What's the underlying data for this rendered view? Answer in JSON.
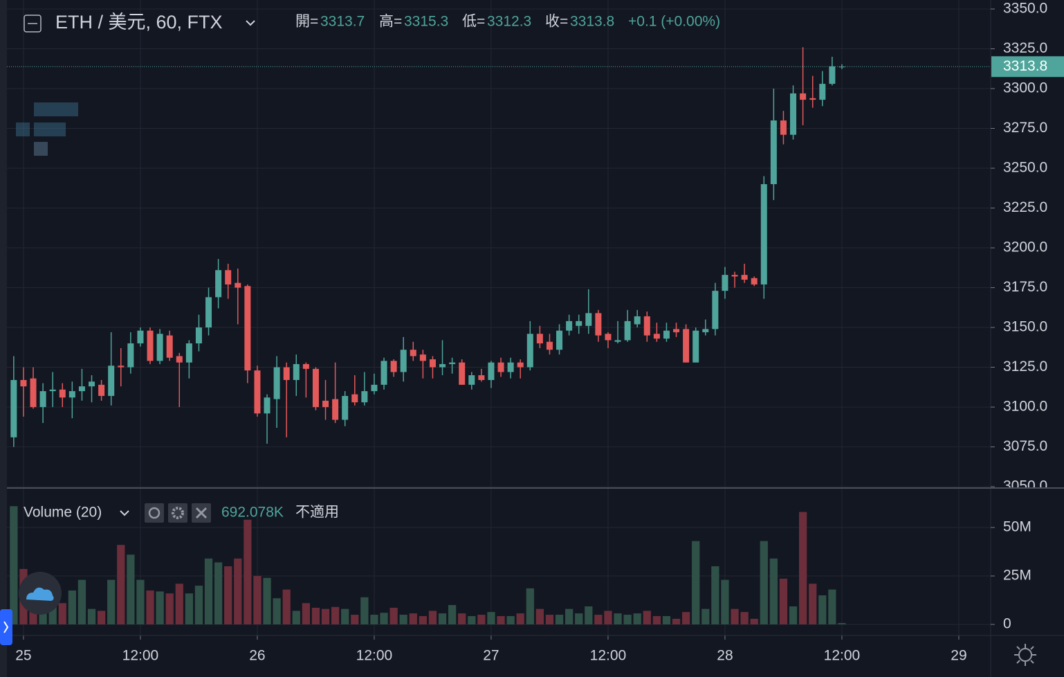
{
  "chart_data": [
    {
      "type": "candlestick",
      "title": "ETH / 美元, 60, FTX",
      "ohlc_labels": [
        "開=",
        "高=",
        "低=",
        "收="
      ],
      "change": "+0.1 (+0.00%)",
      "open": [
        3081,
        3117,
        3118,
        3100,
        3110,
        3111,
        3106,
        3110,
        3113,
        3114,
        3107,
        3126,
        3125,
        3140,
        3148,
        3129,
        3145,
        3132,
        3128,
        3140,
        3150,
        3169,
        3186,
        3178,
        3176,
        3123,
        3096,
        3105,
        3125,
        3117,
        3127,
        3124,
        3104,
        3105,
        3092,
        3108,
        3103,
        3110,
        3114,
        3129,
        3122,
        3136,
        3133,
        3130,
        3125,
        3127,
        3128,
        3114,
        3120,
        3117,
        3128,
        3122,
        3128,
        3125,
        3146,
        3141,
        3136,
        3148,
        3151,
        3151,
        3159,
        3146,
        3141,
        3142,
        3152,
        3157,
        3146,
        3143,
        3149,
        3149,
        3128,
        3147,
        3149,
        3173,
        3183,
        3183,
        3181,
        3177,
        3240,
        3280,
        3271,
        3297,
        3294,
        3293,
        3303,
        3313.7
      ],
      "high": [
        3132,
        3125,
        3125,
        3115,
        3122,
        3115,
        3116,
        3124,
        3120,
        3117,
        3147,
        3137,
        3147,
        3150,
        3150,
        3149,
        3148,
        3134,
        3142,
        3158,
        3175,
        3193,
        3190,
        3187,
        3177,
        3126,
        3108,
        3132,
        3128,
        3133,
        3128,
        3125,
        3117,
        3128,
        3110,
        3120,
        3122,
        3121,
        3131,
        3130,
        3144,
        3141,
        3136,
        3132,
        3142,
        3131,
        3130,
        3122,
        3124,
        3129,
        3131,
        3131,
        3130,
        3154,
        3151,
        3146,
        3152,
        3158,
        3158,
        3174,
        3161,
        3147,
        3154,
        3161,
        3161,
        3160,
        3153,
        3153,
        3153,
        3152,
        3150,
        3155,
        3178,
        3188,
        3185,
        3190,
        3182,
        3245,
        3300,
        3286,
        3302,
        3326,
        3308,
        3311,
        3320,
        3315.3
      ],
      "low": [
        3075,
        3094,
        3099,
        3090,
        3100,
        3100,
        3093,
        3104,
        3103,
        3104,
        3101,
        3113,
        3121,
        3138,
        3127,
        3127,
        3129,
        3100,
        3118,
        3135,
        3145,
        3162,
        3168,
        3152,
        3115,
        3094,
        3077,
        3087,
        3081,
        3107,
        3106,
        3098,
        3092,
        3090,
        3088,
        3101,
        3101,
        3108,
        3111,
        3119,
        3116,
        3129,
        3118,
        3118,
        3120,
        3121,
        3114,
        3111,
        3116,
        3112,
        3119,
        3118,
        3118,
        3123,
        3137,
        3133,
        3133,
        3145,
        3146,
        3146,
        3141,
        3137,
        3140,
        3141,
        3150,
        3141,
        3141,
        3141,
        3144,
        3128,
        3128,
        3145,
        3145,
        3168,
        3175,
        3178,
        3176,
        3168,
        3230,
        3265,
        3268,
        3277,
        3288,
        3289,
        3302,
        3312.3
      ],
      "close": [
        3117,
        3113,
        3100,
        3110,
        3111,
        3106,
        3110,
        3113,
        3116,
        3107,
        3126,
        3125,
        3140,
        3148,
        3129,
        3146,
        3131,
        3128,
        3140,
        3150,
        3169,
        3186,
        3177,
        3175,
        3123,
        3096,
        3106,
        3125,
        3117,
        3127,
        3124,
        3100,
        3100,
        3092,
        3107,
        3103,
        3110,
        3114,
        3129,
        3122,
        3136,
        3132,
        3129,
        3125,
        3127,
        3128,
        3114,
        3120,
        3117,
        3128,
        3122,
        3128,
        3125,
        3146,
        3140,
        3136,
        3148,
        3154,
        3154,
        3159,
        3145,
        3142,
        3142,
        3154,
        3157,
        3145,
        3143,
        3148,
        3147,
        3128,
        3148,
        3149,
        3173,
        3183,
        3182,
        3180,
        3177,
        3240,
        3280,
        3271,
        3297,
        3293,
        3293,
        3303,
        3314,
        3313.8
      ],
      "up_color": "#4fa59b",
      "down_color": "#e4595a",
      "xlim": [
        -0.7,
        100.27
      ],
      "xticks": [
        {
          "value": 1,
          "label": "25"
        },
        {
          "value": 13,
          "label": "12:00"
        },
        {
          "value": 25,
          "label": "26"
        },
        {
          "value": 37,
          "label": "12:00"
        },
        {
          "value": 49,
          "label": "27"
        },
        {
          "value": 61,
          "label": "12:00"
        },
        {
          "value": 73,
          "label": "28"
        },
        {
          "value": 85,
          "label": "12:00"
        },
        {
          "value": 97,
          "label": "29"
        }
      ],
      "ylim": [
        3049.6,
        3355.65
      ],
      "yticks": [
        {
          "value": 3050,
          "label": "3050.0"
        },
        {
          "value": 3075,
          "label": "3075.0"
        },
        {
          "value": 3100,
          "label": "3100.0"
        },
        {
          "value": 3125,
          "label": "3125.0"
        },
        {
          "value": 3150,
          "label": "3150.0"
        },
        {
          "value": 3175,
          "label": "3175.0"
        },
        {
          "value": 3200,
          "label": "3200.0"
        },
        {
          "value": 3225,
          "label": "3225.0"
        },
        {
          "value": 3250,
          "label": "3250.0"
        },
        {
          "value": 3275,
          "label": "3275.0"
        },
        {
          "value": 3300,
          "label": "3300.0"
        },
        {
          "value": 3325,
          "label": "3325.0"
        },
        {
          "value": 3350,
          "label": "3350.0"
        }
      ],
      "grid": true
    },
    {
      "type": "bar",
      "name": "Volume (20)",
      "status": "不適用",
      "values": [
        61,
        28.6,
        22,
        11,
        12,
        11,
        17.5,
        23,
        8,
        7,
        23,
        41,
        36,
        23,
        17.5,
        17,
        16,
        21,
        16,
        20,
        34,
        32,
        30,
        34,
        54,
        25,
        24,
        13.5,
        18,
        7,
        11,
        8.6,
        8,
        9,
        8,
        5,
        14,
        5,
        6,
        8.6,
        5,
        5.7,
        4.3,
        7,
        5.7,
        10,
        5.7,
        4.3,
        5,
        6.4,
        4.3,
        4.3,
        5.7,
        18.6,
        8,
        5,
        5,
        8,
        5.7,
        9.3,
        5,
        7,
        5.7,
        5,
        5.7,
        7,
        4.3,
        4.3,
        2.9,
        6.4,
        43,
        8,
        30,
        23,
        8,
        6.4,
        2.9,
        43,
        34,
        23.6,
        9.3,
        58,
        21,
        15,
        18,
        0.692078
      ],
      "value_labels": [
        null,
        null,
        null,
        null,
        null,
        null,
        null,
        null,
        null,
        null,
        null,
        null,
        null,
        null,
        null,
        null,
        null,
        null,
        null,
        null,
        null,
        null,
        null,
        null,
        null,
        null,
        null,
        null,
        null,
        null,
        null,
        null,
        null,
        null,
        null,
        null,
        null,
        null,
        null,
        null,
        null,
        null,
        null,
        null,
        null,
        null,
        null,
        null,
        null,
        null,
        null,
        null,
        null,
        null,
        null,
        null,
        null,
        null,
        null,
        null,
        null,
        null,
        null,
        null,
        null,
        null,
        null,
        null,
        null,
        null,
        null,
        null,
        null,
        null,
        null,
        null,
        null,
        null,
        null,
        null,
        null,
        null,
        null,
        null,
        null,
        "692.078K"
      ],
      "up_color": "#2f5147",
      "down_color": "#6b2e3a",
      "ylim": [
        -5.7,
        70
      ],
      "yticks": [
        {
          "value": 50,
          "label": "50M"
        },
        {
          "value": 25,
          "label": "25M"
        },
        0
      ],
      "grid": true
    }
  ]
}
